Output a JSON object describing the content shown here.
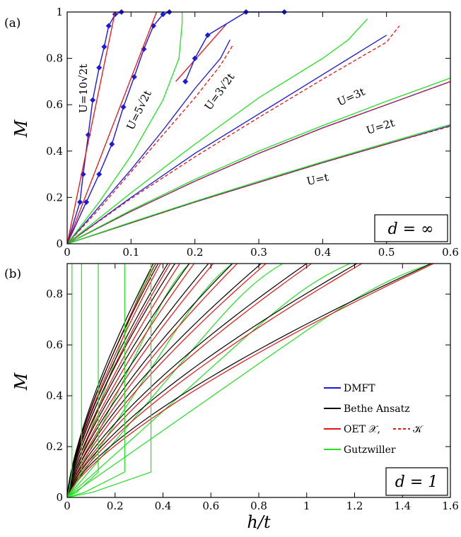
{
  "chart_data": [
    {
      "panel": "(a)",
      "type": "line",
      "xlabel": "",
      "ylabel": "M",
      "xlim": [
        0,
        0.6
      ],
      "ylim": [
        0,
        1
      ],
      "xticks": [
        "0",
        "0.1",
        "0.2",
        "0.3",
        "0.4",
        "0.5",
        "0.6"
      ],
      "yticks": [
        "0",
        "0.2",
        "0.4",
        "0.6",
        "0.8",
        "1"
      ],
      "box_label": "d = ∞",
      "colors": {
        "dmft": "#1a1adc",
        "oet": "#e81414",
        "gutzwiller": "#22e022"
      },
      "curve_labels": [
        "U=10√2t",
        "U=5√2t",
        "U=3√2t",
        "U=3t",
        "U=2t",
        "U=t"
      ],
      "series": [
        {
          "group": "U=t",
          "method": "DMFT",
          "style": "solid",
          "points": [
            [
              0,
              0
            ],
            [
              0.1,
              0.09
            ],
            [
              0.2,
              0.18
            ],
            [
              0.3,
              0.265
            ],
            [
              0.4,
              0.35
            ],
            [
              0.5,
              0.43
            ],
            [
              0.6,
              0.51
            ]
          ]
        },
        {
          "group": "U=t",
          "method": "OET",
          "style": "dashed",
          "points": [
            [
              0,
              0
            ],
            [
              0.1,
              0.09
            ],
            [
              0.2,
              0.18
            ],
            [
              0.3,
              0.265
            ],
            [
              0.4,
              0.35
            ],
            [
              0.5,
              0.43
            ],
            [
              0.6,
              0.507
            ]
          ]
        },
        {
          "group": "U=t",
          "method": "Gutzwiller",
          "style": "solid",
          "points": [
            [
              0,
              0
            ],
            [
              0.1,
              0.093
            ],
            [
              0.2,
              0.183
            ],
            [
              0.3,
              0.27
            ],
            [
              0.4,
              0.354
            ],
            [
              0.5,
              0.435
            ],
            [
              0.6,
              0.515
            ]
          ]
        },
        {
          "group": "U=2t",
          "method": "DMFT",
          "style": "solid",
          "points": [
            [
              0,
              0
            ],
            [
              0.1,
              0.14
            ],
            [
              0.2,
              0.27
            ],
            [
              0.3,
              0.39
            ],
            [
              0.4,
              0.5
            ],
            [
              0.5,
              0.6
            ],
            [
              0.6,
              0.7
            ]
          ]
        },
        {
          "group": "U=2t",
          "method": "OET",
          "style": "dashed",
          "points": [
            [
              0,
              0
            ],
            [
              0.1,
              0.14
            ],
            [
              0.2,
              0.27
            ],
            [
              0.3,
              0.39
            ],
            [
              0.4,
              0.5
            ],
            [
              0.5,
              0.6
            ],
            [
              0.6,
              0.7
            ]
          ]
        },
        {
          "group": "U=2t",
          "method": "Gutzwiller",
          "style": "solid",
          "points": [
            [
              0,
              0
            ],
            [
              0.1,
              0.145
            ],
            [
              0.2,
              0.278
            ],
            [
              0.3,
              0.4
            ],
            [
              0.4,
              0.51
            ],
            [
              0.5,
              0.615
            ],
            [
              0.6,
              0.715
            ]
          ]
        },
        {
          "group": "U=3t",
          "method": "DMFT",
          "style": "solid",
          "points": [
            [
              0,
              0
            ],
            [
              0.1,
              0.2
            ],
            [
              0.2,
              0.39
            ],
            [
              0.3,
              0.56
            ],
            [
              0.4,
              0.73
            ],
            [
              0.5,
              0.9
            ]
          ]
        },
        {
          "group": "U=3t",
          "method": "OET",
          "style": "dashed",
          "points": [
            [
              0,
              0
            ],
            [
              0.1,
              0.195
            ],
            [
              0.2,
              0.375
            ],
            [
              0.3,
              0.545
            ],
            [
              0.4,
              0.71
            ],
            [
              0.5,
              0.87
            ],
            [
              0.52,
              0.94
            ]
          ]
        },
        {
          "group": "U=3t",
          "method": "Gutzwiller",
          "style": "solid",
          "points": [
            [
              0,
              0
            ],
            [
              0.1,
              0.22
            ],
            [
              0.2,
              0.43
            ],
            [
              0.3,
              0.63
            ],
            [
              0.4,
              0.8
            ],
            [
              0.44,
              0.88
            ],
            [
              0.47,
              0.97
            ]
          ]
        },
        {
          "group": "U=3√2t",
          "method": "DMFT",
          "style": "solid",
          "points": [
            [
              0,
              0
            ],
            [
              0.05,
              0.16
            ],
            [
              0.1,
              0.32
            ],
            [
              0.15,
              0.49
            ],
            [
              0.2,
              0.67
            ],
            [
              0.24,
              0.8
            ],
            [
              0.255,
              0.88
            ]
          ]
        },
        {
          "group": "U=3√2t",
          "method": "OET",
          "style": "dashed",
          "points": [
            [
              0,
              0
            ],
            [
              0.05,
              0.15
            ],
            [
              0.1,
              0.31
            ],
            [
              0.15,
              0.47
            ],
            [
              0.2,
              0.63
            ],
            [
              0.24,
              0.77
            ],
            [
              0.26,
              0.86
            ]
          ]
        },
        {
          "group": "U=3√2t",
          "method": "OET",
          "style": "solid",
          "points": [
            [
              0.17,
              0.7
            ],
            [
              0.25,
              0.95
            ]
          ]
        },
        {
          "group": "U=3√2t",
          "method": "Gutzwiller",
          "style": "solid",
          "points": [
            [
              0,
              0
            ],
            [
              0.05,
              0.18
            ],
            [
              0.1,
              0.38
            ],
            [
              0.15,
              0.62
            ],
            [
              0.175,
              0.8
            ],
            [
              0.18,
              0.95
            ],
            [
              0.18,
              1.0
            ]
          ]
        },
        {
          "group": "U=3√2t",
          "method": "DMFT",
          "style": "markers",
          "points": [
            [
              0.185,
              0.7
            ],
            [
              0.2,
              0.8
            ],
            [
              0.22,
              0.9
            ],
            [
              0.28,
              1.0
            ],
            [
              0.34,
              1.0
            ]
          ]
        },
        {
          "group": "U=5√2t",
          "method": "DMFT",
          "style": "markers",
          "points": [
            [
              0,
              0
            ],
            [
              0.03,
              0.18
            ],
            [
              0.05,
              0.3
            ],
            [
              0.07,
              0.43
            ],
            [
              0.088,
              0.59
            ],
            [
              0.105,
              0.72
            ],
            [
              0.12,
              0.84
            ],
            [
              0.135,
              0.94
            ],
            [
              0.15,
              0.99
            ],
            [
              0.16,
              1.0
            ]
          ]
        },
        {
          "group": "U=5√2t",
          "method": "OET",
          "style": "solid",
          "points": [
            [
              0,
              0
            ],
            [
              0.14,
              1.0
            ]
          ]
        },
        {
          "group": "U=10√2t",
          "method": "DMFT",
          "style": "markers",
          "points": [
            [
              0,
              0
            ],
            [
              0.02,
              0.18
            ],
            [
              0.025,
              0.3
            ],
            [
              0.033,
              0.47
            ],
            [
              0.04,
              0.62
            ],
            [
              0.05,
              0.76
            ],
            [
              0.058,
              0.85
            ],
            [
              0.065,
              0.94
            ],
            [
              0.075,
              0.99
            ],
            [
              0.085,
              1.0
            ]
          ]
        },
        {
          "group": "U=10√2t",
          "method": "OET",
          "style": "solid",
          "points": [
            [
              0,
              0
            ],
            [
              0.075,
              1.0
            ]
          ]
        }
      ]
    },
    {
      "panel": "(b)",
      "type": "line",
      "xlabel": "h/t",
      "ylabel": "M",
      "xlim": [
        0,
        1.6
      ],
      "ylim": [
        0,
        0.92
      ],
      "xticks": [
        "0",
        "0.2",
        "0.4",
        "0.6",
        "0.8",
        "1",
        "1.2",
        "1.4",
        "1.6"
      ],
      "yticks": [
        "0",
        "0.2",
        "0.4",
        "0.6",
        "0.8"
      ],
      "box_label": "d = 1",
      "legend": {
        "position": "lower-right",
        "entries": [
          {
            "label": "DMFT",
            "color": "#1a1adc"
          },
          {
            "label": "Bethe Ansatz",
            "color": "#000000"
          },
          {
            "label": "OET 𝒳,",
            "color": "#e81414",
            "extra": "𝒦"
          },
          {
            "label": "Gutzwiller",
            "color": "#22e022"
          }
        ]
      },
      "families": [
        {
          "hsat": 0.36,
          "bethe": 0.36,
          "oet": 0.37,
          "gutz": 0.37
        },
        {
          "hsat": 0.38,
          "bethe": 0.38,
          "oet": 0.39,
          "gutz": 0.0
        },
        {
          "hsat": 0.42,
          "bethe": 0.42,
          "oet": 0.43,
          "gutz": 0.51
        },
        {
          "hsat": 0.45,
          "bethe": 0.45,
          "oet": 0.47,
          "gutz": 0.0
        },
        {
          "hsat": 0.51,
          "bethe": 0.51,
          "oet": 0.53,
          "gutz": 0.0
        },
        {
          "hsat": 0.59,
          "bethe": 0.59,
          "oet": 0.61,
          "gutz": 0.69
        },
        {
          "hsat": 0.69,
          "bethe": 0.69,
          "oet": 0.71,
          "gutz": 0.0
        },
        {
          "hsat": 0.81,
          "bethe": 0.81,
          "oet": 0.83,
          "gutz": 0.9
        },
        {
          "hsat": 1.0,
          "bethe": 1.0,
          "oet": 1.02,
          "gutz": 0.0
        },
        {
          "hsat": 1.21,
          "bethe": 1.21,
          "oet": 1.23,
          "gutz": 1.18
        },
        {
          "hsat": 1.52,
          "bethe": 1.52,
          "oet": 1.53,
          "gutz": 1.52
        }
      ],
      "gutz_steep": [
        0.02,
        0.06,
        0.13,
        0.24,
        0.35
      ]
    }
  ]
}
